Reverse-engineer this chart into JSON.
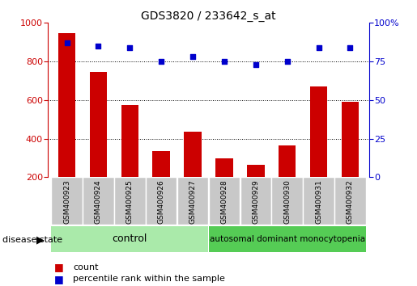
{
  "title": "GDS3820 / 233642_s_at",
  "categories": [
    "GSM400923",
    "GSM400924",
    "GSM400925",
    "GSM400926",
    "GSM400927",
    "GSM400928",
    "GSM400929",
    "GSM400930",
    "GSM400931",
    "GSM400932"
  ],
  "bar_values": [
    945,
    745,
    575,
    335,
    435,
    298,
    263,
    365,
    670,
    590
  ],
  "dot_values": [
    87,
    85,
    84,
    75,
    78,
    75,
    73,
    75,
    84,
    84
  ],
  "bar_color": "#cc0000",
  "dot_color": "#0000cc",
  "bar_bottom": 200,
  "ylim_left": [
    200,
    1000
  ],
  "ylim_right": [
    0,
    100
  ],
  "yticks_left": [
    200,
    400,
    600,
    800,
    1000
  ],
  "yticks_right": [
    0,
    25,
    50,
    75,
    100
  ],
  "yticklabels_right": [
    "0",
    "25",
    "50",
    "75",
    "100%"
  ],
  "grid_values": [
    400,
    600,
    800
  ],
  "control_label": "control",
  "disease_label": "autosomal dominant monocytopenia",
  "disease_state_label": "disease state",
  "legend_count": "count",
  "legend_percentile": "percentile rank within the sample",
  "control_color": "#aaeaaa",
  "disease_color": "#55cc55",
  "bg_color": "#c8c8c8",
  "n_control": 5,
  "n_disease": 5
}
